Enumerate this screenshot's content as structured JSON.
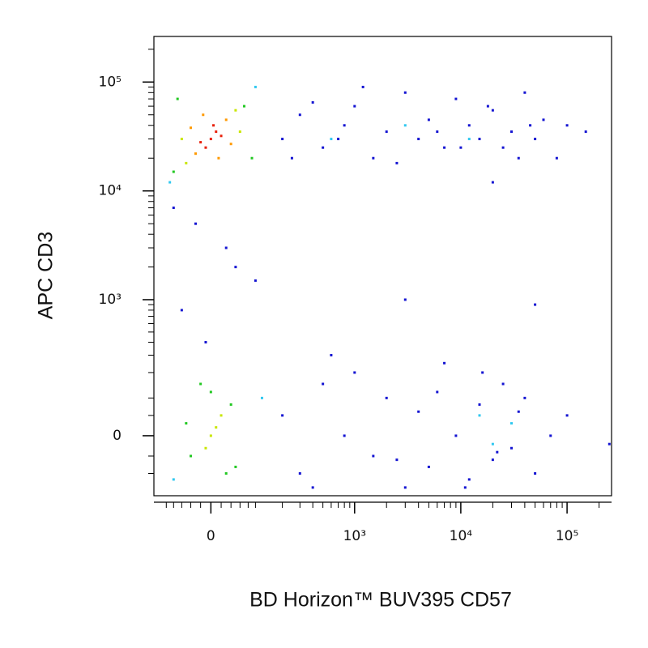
{
  "chart_data": {
    "type": "scatter",
    "x_label": "BD Horizon™ BUV395  CD57",
    "y_label": "APC CD3",
    "xscale": "biexponential",
    "yscale": "biexponential",
    "xlim": [
      -140,
      262144
    ],
    "ylim": [
      -185,
      262144
    ],
    "xticks": [
      0,
      {
        "value": 1000,
        "label": "10³"
      },
      {
        "value": 10000,
        "label": "10⁴"
      },
      {
        "value": 100000,
        "label": "10⁵"
      }
    ],
    "yticks": [
      0,
      {
        "value": 1000,
        "label": "10³"
      },
      {
        "value": 10000,
        "label": "10⁴"
      },
      {
        "value": 100000,
        "label": "10⁵"
      }
    ],
    "xminor_ticks": [
      -100,
      -80,
      -60,
      -40,
      -20,
      20,
      40,
      60,
      80,
      100,
      200,
      300,
      400,
      500,
      600,
      700,
      800,
      900,
      2000,
      3000,
      4000,
      5000,
      6000,
      7000,
      8000,
      9000,
      20000,
      30000,
      40000,
      50000,
      60000,
      70000,
      80000,
      90000,
      200000
    ],
    "yminor_ticks": [
      -100,
      -50,
      50,
      100,
      200,
      300,
      400,
      500,
      600,
      700,
      800,
      900,
      2000,
      3000,
      4000,
      5000,
      6000,
      7000,
      8000,
      9000,
      20000,
      30000,
      40000,
      50000,
      60000,
      70000,
      80000,
      90000,
      200000
    ],
    "series": [
      {
        "color": "#1414d2",
        "x": [
          200,
          300,
          500,
          800,
          1000,
          1500,
          2000,
          3000,
          4000,
          5000,
          7000,
          9000,
          12000,
          15000,
          20000,
          25000,
          30000,
          40000,
          50000,
          60000,
          80000,
          100000,
          150000,
          250,
          400,
          700,
          1200,
          2500,
          6000,
          10000,
          18000,
          35000,
          45000,
          200,
          300,
          500,
          800,
          1000,
          1500,
          2000,
          3000,
          4000,
          5000,
          7000,
          9000,
          12000,
          15000,
          20000,
          25000,
          30000,
          40000,
          50000,
          70000,
          100000,
          250000,
          400,
          600,
          2500,
          6000,
          11000,
          16000,
          22000,
          35000,
          -30,
          50,
          -60,
          100,
          30,
          -10,
          3000,
          20000,
          50000,
          -80
        ],
        "y": [
          30000,
          50000,
          25000,
          40000,
          60000,
          20000,
          35000,
          80000,
          30000,
          45000,
          25000,
          70000,
          40000,
          30000,
          55000,
          25000,
          35000,
          80000,
          30000,
          45000,
          20000,
          40000,
          35000,
          20000,
          65000,
          30000,
          90000,
          18000,
          35000,
          25000,
          60000,
          20000,
          40000,
          50,
          -100,
          150,
          0,
          200,
          -50,
          100,
          -150,
          60,
          -80,
          250,
          0,
          -120,
          80,
          -60,
          150,
          -30,
          100,
          -100,
          0,
          50,
          -20,
          -150,
          300,
          -60,
          120,
          -150,
          200,
          -40,
          60,
          5000,
          2000,
          800,
          1500,
          3000,
          400,
          1000,
          12000,
          900,
          7000
        ]
      },
      {
        "color": "#30c8f0",
        "x": [
          -90,
          100,
          600,
          3000,
          12000,
          20000,
          30000,
          15000,
          -80,
          120
        ],
        "y": [
          12000,
          90000,
          30000,
          40000,
          30000,
          -20,
          30,
          50,
          -120,
          100
        ]
      },
      {
        "color": "#22c822",
        "x": [
          -80,
          70,
          -70,
          90,
          -40,
          40,
          -50,
          50,
          0,
          30,
          -20
        ],
        "y": [
          15000,
          60000,
          70000,
          20000,
          -50,
          80,
          30,
          -80,
          120,
          -100,
          150
        ]
      },
      {
        "color": "#c8e600",
        "x": [
          -50,
          50,
          -60,
          60,
          0,
          10,
          -10,
          20
        ],
        "y": [
          18000,
          55000,
          30000,
          35000,
          0,
          20,
          -30,
          50
        ]
      },
      {
        "color": "#ff9900",
        "x": [
          -30,
          30,
          -15,
          40,
          15,
          -40
        ],
        "y": [
          22000,
          45000,
          50000,
          27000,
          20000,
          38000
        ]
      },
      {
        "color": "#e8200a",
        "x": [
          0,
          10,
          -20,
          20,
          5,
          -10
        ],
        "y": [
          30000,
          35000,
          28000,
          32000,
          40000,
          25000
        ]
      }
    ]
  }
}
